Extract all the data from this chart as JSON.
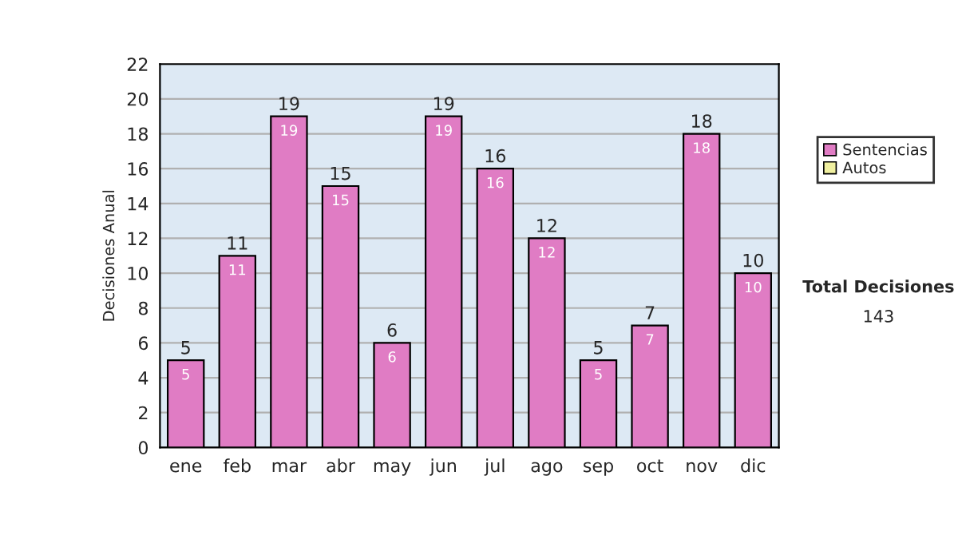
{
  "chart_data": {
    "type": "bar",
    "ylabel": "Decisiones Anual",
    "categories": [
      "ene",
      "feb",
      "mar",
      "abr",
      "may",
      "jun",
      "jul",
      "ago",
      "sep",
      "oct",
      "nov",
      "dic"
    ],
    "stacked": true,
    "series": [
      {
        "name": "Sentencias",
        "color": "#e07cc4",
        "values": [
          5,
          11,
          19,
          15,
          6,
          19,
          16,
          12,
          5,
          7,
          18,
          10
        ],
        "value_labels": [
          "5",
          "11",
          "19",
          "15",
          "6",
          "19",
          "16",
          "12",
          "5",
          "7",
          "18",
          "10"
        ]
      },
      {
        "name": "Autos",
        "color": "#f0f0a0",
        "values": [
          null,
          null,
          null,
          null,
          null,
          null,
          null,
          null,
          null,
          null,
          null,
          null
        ]
      }
    ],
    "totals": [
      "5",
      "11",
      "19",
      "15",
      "6",
      "19",
      "16",
      "12",
      "5",
      "7",
      "18",
      "10"
    ],
    "ylim": [
      0,
      22
    ],
    "yticks": [
      0,
      2,
      4,
      6,
      8,
      10,
      12,
      14,
      16,
      18,
      20,
      22
    ],
    "grid": "y",
    "legend": "right",
    "annotations": [
      "Total Decisiones",
      "143"
    ]
  }
}
